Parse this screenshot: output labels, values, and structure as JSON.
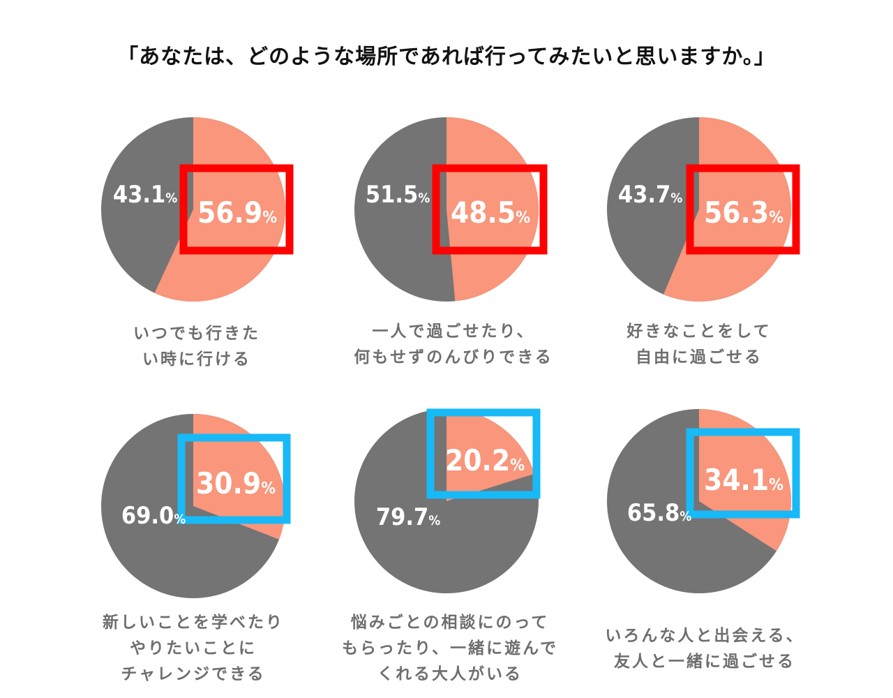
{
  "title": "「あなたは、どのような場所であれば行ってみたいと思いますか。」",
  "chart_data": {
    "type": "pie",
    "title": "「あなたは、どのような場所であれば行ってみたいと思いますか。」",
    "unit": "%",
    "colors": {
      "yes": "#F9967B",
      "no": "#747474",
      "highlight_high": "#FF0000",
      "highlight_low": "#18B9F7"
    },
    "charts": [
      {
        "caption": [
          "いつでも行きた",
          "い時に行ける"
        ],
        "yes": 56.9,
        "no": 43.1,
        "yes_label": "56.9",
        "no_label": "43.1",
        "highlight": "high"
      },
      {
        "caption": [
          "一人で過ごせたり、",
          "何もせずのんびりできる"
        ],
        "yes": 48.5,
        "no": 51.5,
        "yes_label": "48.5",
        "no_label": "51.5",
        "highlight": "high"
      },
      {
        "caption": [
          "好きなことをして",
          "自由に過ごせる"
        ],
        "yes": 56.3,
        "no": 43.7,
        "yes_label": "56.3",
        "no_label": "43.7",
        "highlight": "high"
      },
      {
        "caption": [
          "新しいことを学べたり",
          "やりたいことに",
          "チャレンジできる"
        ],
        "yes": 30.9,
        "no": 69.0,
        "yes_label": "30.9",
        "no_label": "69.0",
        "highlight": "low"
      },
      {
        "caption": [
          "悩みごとの相談にのって",
          "もらったり、一緒に遊んで",
          "くれる大人がいる"
        ],
        "yes": 20.2,
        "no": 79.7,
        "yes_label": "20.2",
        "no_label": "79.7",
        "highlight": "low"
      },
      {
        "caption": [
          "いろんな人と出会える、",
          "友人と一緒に過ごせる"
        ],
        "yes": 34.1,
        "no": 65.8,
        "yes_label": "34.1",
        "no_label": "65.8",
        "highlight": "low"
      }
    ],
    "percent_sign": "%"
  }
}
